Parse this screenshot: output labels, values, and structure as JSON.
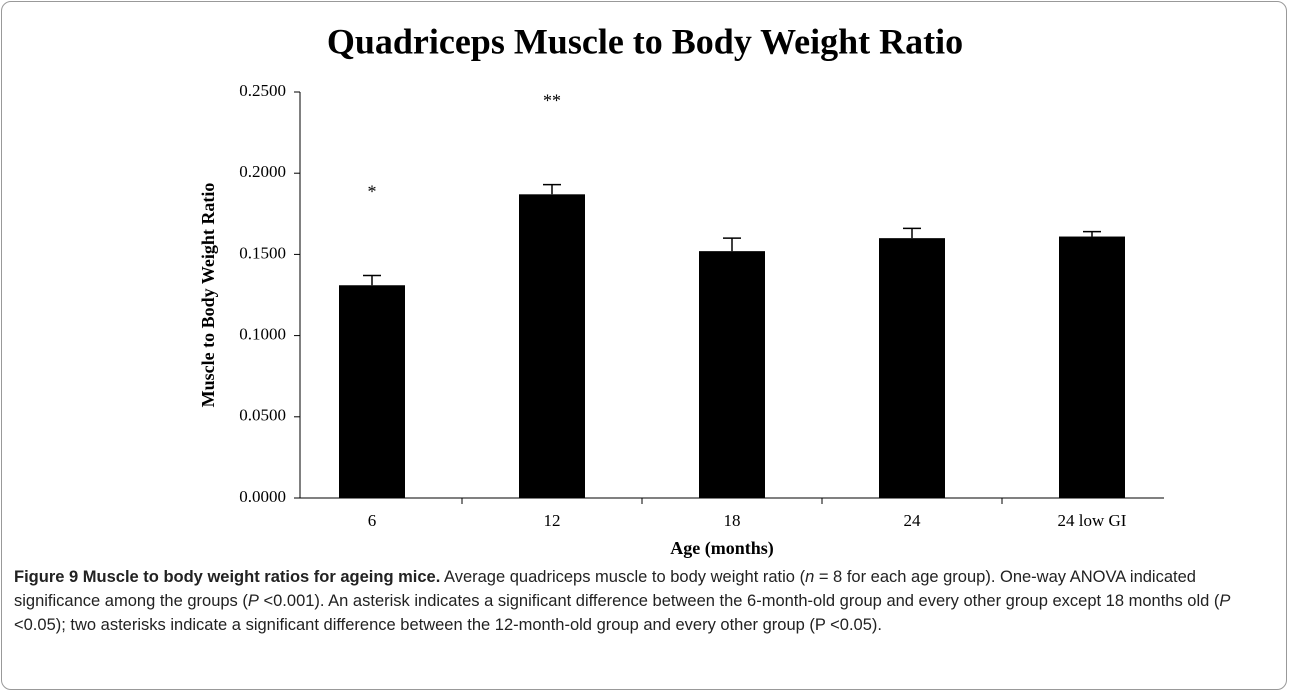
{
  "chart_data": {
    "type": "bar",
    "title": "Quadriceps Muscle to Body Weight Ratio",
    "x_label": "Age (months)",
    "y_label": "Muscle to Body Weight Ratio",
    "categories": [
      "6",
      "12",
      "18",
      "24",
      "24 low GI"
    ],
    "values": [
      0.131,
      0.187,
      0.152,
      0.16,
      0.161
    ],
    "errors": [
      0.006,
      0.006,
      0.008,
      0.006,
      0.003
    ],
    "annotations": [
      "*",
      "**",
      null,
      null,
      null
    ],
    "color": "#000000",
    "ylim": [
      0,
      0.25
    ],
    "yticks": [
      {
        "value": 0,
        "label": "0.0000"
      },
      {
        "value": 0.05,
        "label": "0.0500"
      },
      {
        "value": 0.1,
        "label": "0.1000"
      },
      {
        "value": 0.15,
        "label": "0.1500"
      },
      {
        "value": 0.2,
        "label": "0.2000"
      },
      {
        "value": 0.25,
        "label": "0.2500"
      }
    ],
    "grid": false
  },
  "caption": [
    {
      "text": "Figure 9 Muscle to body weight ratios for ageing mice.",
      "style": "bold"
    },
    {
      "text": " Average quadriceps muscle to body weight ratio (",
      "style": "normal"
    },
    {
      "text": "n",
      "style": "italic"
    },
    {
      "text": " = 8 for each age group). One-way ANOVA indicated significance among the groups (",
      "style": "normal"
    },
    {
      "text": "P",
      "style": "italic"
    },
    {
      "text": " <0.001). An asterisk indicates a significant difference between the 6-month-old group and every other group except 18 months old (",
      "style": "normal"
    },
    {
      "text": "P",
      "style": "italic"
    },
    {
      "text": " <0.05); two asterisks indicate a significant difference between the 12-month-old group and every other group (P <0.05).",
      "style": "normal"
    }
  ]
}
